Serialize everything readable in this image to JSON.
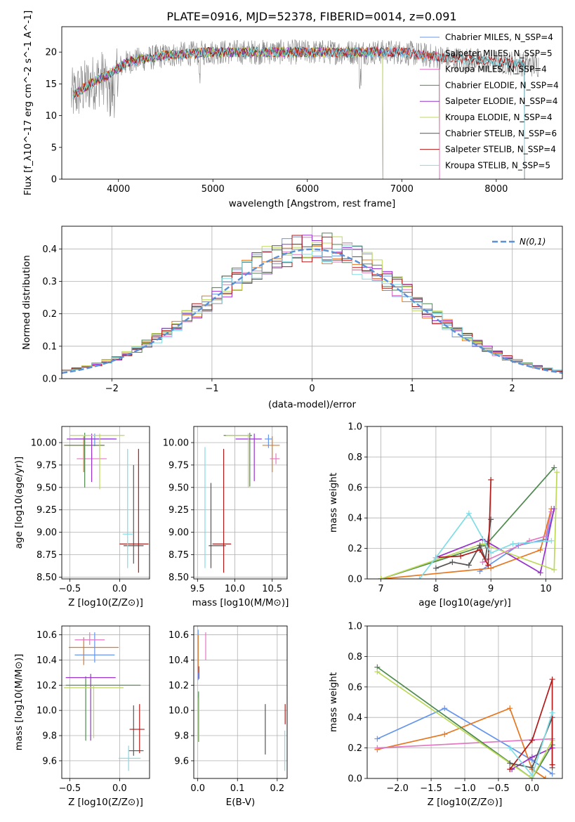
{
  "figure": {
    "title": "PLATE=0916, MJD=52378, FIBERID=0014, z=0.091",
    "colors": {
      "chabrier_miles": "#6495ed",
      "salpeter_miles": "#e6761f",
      "kroupa_miles": "#e377c2",
      "chabrier_elodie": "#4e8a4e",
      "salpeter_elodie": "#9932cc",
      "kroupa_elodie": "#bcd95a",
      "chabrier_stelib": "#555555",
      "salpeter_stelib": "#b21a1a",
      "kroupa_stelib": "#7fdde6"
    }
  },
  "chart_data": [
    {
      "id": "spectrum",
      "type": "line",
      "xlabel": "wavelength [Angstrom, rest frame]",
      "ylabel": "Flux [f_λ10^-17 erg cm^-2 s^-1 A^-1]",
      "xlim": [
        3400,
        8700
      ],
      "ylim": [
        0,
        24
      ],
      "xticks": [
        "4000",
        "5000",
        "6000",
        "7000",
        "8000"
      ],
      "yticks": [
        "0",
        "5",
        "10",
        "15",
        "20"
      ],
      "legend_position": "right",
      "legend": [
        "Chabrier MILES, N_SSP=4",
        "Salpeter MILES, N_SSP=5",
        "Kroupa MILES, N_SSP=4",
        "Chabrier ELODIE, N_SSP=4",
        "Salpeter ELODIE, N_SSP=4",
        "Kroupa ELODIE, N_SSP=4",
        "Chabrier STELIB, N_SSP=6",
        "Salpeter STELIB, N_SSP=4",
        "Kroupa STELIB, N_SSP=5"
      ],
      "continuum_points": [
        [
          3500,
          13
        ],
        [
          3700,
          15
        ],
        [
          3900,
          16.5
        ],
        [
          4100,
          18.5
        ],
        [
          4500,
          19.5
        ],
        [
          5000,
          20
        ],
        [
          5500,
          20
        ],
        [
          6000,
          20
        ],
        [
          6500,
          20
        ],
        [
          7000,
          20
        ],
        [
          7500,
          19
        ],
        [
          8000,
          18.5
        ],
        [
          8400,
          18
        ]
      ]
    },
    {
      "id": "residuals",
      "type": "step",
      "xlabel": "(data-model)/error",
      "ylabel": "Normed distribution",
      "xlim": [
        -2.5,
        2.5
      ],
      "ylim": [
        0,
        0.47
      ],
      "xticks": [
        "-2",
        "-1",
        "0",
        "1",
        "2"
      ],
      "yticks": [
        "0.0",
        "0.1",
        "0.2",
        "0.3",
        "0.4"
      ],
      "legend_position": "upper right",
      "legend": [
        "N(0,1)"
      ],
      "reference_curve": "normal(0,1)"
    },
    {
      "id": "age_vs_Z",
      "type": "errorbar",
      "xlabel": "Z [log10(Z/Z⊙)]",
      "ylabel": "age [log10(age/yr)]",
      "xlim": [
        -0.58,
        0.3
      ],
      "ylim": [
        8.48,
        10.18
      ],
      "xticks": [
        "-0.5",
        "0.0"
      ],
      "yticks": [
        "8.50",
        "8.75",
        "9.00",
        "9.25",
        "9.50",
        "9.75",
        "10.00"
      ],
      "points": [
        {
          "model": "chabrier_miles",
          "x": -0.25,
          "xerr": [
            0.2,
            0.2
          ],
          "y": 10.04,
          "yerr": [
            0.08,
            0.06
          ]
        },
        {
          "model": "salpeter_miles",
          "x": -0.36,
          "xerr": [
            0.2,
            0.2
          ],
          "y": 9.97,
          "yerr": [
            0.3,
            0.1
          ]
        },
        {
          "model": "kroupa_miles",
          "x": -0.28,
          "xerr": [
            0.15,
            0.15
          ],
          "y": 9.82,
          "yerr": [
            0.06,
            0.06
          ]
        },
        {
          "model": "chabrier_elodie",
          "x": -0.35,
          "xerr": [
            0.2,
            0.2
          ],
          "y": 9.97,
          "yerr": [
            0.47,
            0.14
          ]
        },
        {
          "model": "salpeter_elodie",
          "x": -0.28,
          "xerr": [
            0.25,
            0.25
          ],
          "y": 10.04,
          "yerr": [
            0.48,
            0.06
          ]
        },
        {
          "model": "kroupa_elodie",
          "x": -0.2,
          "xerr": [
            0.3,
            0.25
          ],
          "y": 10.08,
          "yerr": [
            0.6,
            0.02
          ]
        },
        {
          "model": "chabrier_stelib",
          "x": 0.14,
          "xerr": [
            0.1,
            0.1
          ],
          "y": 8.85,
          "yerr": [
            0.2,
            0.9
          ]
        },
        {
          "model": "salpeter_stelib",
          "x": 0.19,
          "xerr": [
            0.19,
            0.1
          ],
          "y": 8.87,
          "yerr": [
            0.32,
            1.06
          ]
        },
        {
          "model": "kroupa_stelib",
          "x": 0.08,
          "xerr": [
            0.05,
            0.05
          ],
          "y": 8.98,
          "yerr": [
            0.38,
            0.95
          ]
        }
      ]
    },
    {
      "id": "age_vs_mass",
      "type": "errorbar",
      "xlabel": "mass [log10(M/M⊙)]",
      "ylabel": "",
      "xlim": [
        9.45,
        10.7
      ],
      "ylim": [
        8.48,
        10.18
      ],
      "xticks": [
        "9.5",
        "10.0",
        "10.5"
      ],
      "yticks": [
        "8.50",
        "8.75",
        "9.00",
        "9.25",
        "9.50",
        "9.75",
        "10.00"
      ],
      "points": [
        {
          "model": "chabrier_miles",
          "x": 10.45,
          "xerr": [
            0.05,
            0.05
          ],
          "y": 10.04,
          "yerr": [
            0.1,
            0.05
          ]
        },
        {
          "model": "salpeter_miles",
          "x": 10.5,
          "xerr": [
            0.13,
            0.1
          ],
          "y": 9.97,
          "yerr": [
            0.3,
            0.1
          ]
        },
        {
          "model": "kroupa_miles",
          "x": 10.55,
          "xerr": [
            0.08,
            0.05
          ],
          "y": 9.82,
          "yerr": [
            0.06,
            0.06
          ]
        },
        {
          "model": "chabrier_elodie",
          "x": 10.2,
          "xerr": [
            0.35,
            0.03
          ],
          "y": 10.08,
          "yerr": [
            0.57,
            0.03
          ]
        },
        {
          "model": "salpeter_elodie",
          "x": 10.26,
          "xerr": [
            0.25,
            0.1
          ],
          "y": 10.04,
          "yerr": [
            0.47,
            0.06
          ]
        },
        {
          "model": "kroupa_elodie",
          "x": 10.18,
          "xerr": [
            0.3,
            0.02
          ],
          "y": 10.08,
          "yerr": [
            0.58,
            0.02
          ]
        },
        {
          "model": "chabrier_stelib",
          "x": 9.68,
          "xerr": [
            0.03,
            0.2
          ],
          "y": 8.85,
          "yerr": [
            0.25,
            0.7
          ]
        },
        {
          "model": "salpeter_stelib",
          "x": 9.85,
          "xerr": [
            0.15,
            0.1
          ],
          "y": 8.87,
          "yerr": [
            0.32,
            1.06
          ]
        },
        {
          "model": "kroupa_stelib",
          "x": 9.6,
          "xerr": [
            0.01,
            0.01
          ],
          "y": 9.0,
          "yerr": [
            0.4,
            0.95
          ]
        }
      ]
    },
    {
      "id": "massweight_vs_age",
      "type": "line",
      "xlabel": "age [log10(age/yr)]",
      "ylabel": "mass weight",
      "xlim": [
        6.75,
        10.3
      ],
      "ylim": [
        0,
        1.0
      ],
      "xticks": [
        "7",
        "8",
        "9",
        "10"
      ],
      "yticks": [
        "0.0",
        "0.2",
        "0.4",
        "0.6",
        "0.8",
        "1.0"
      ],
      "series": [
        {
          "model": "chabrier_miles",
          "points": [
            [
              8.8,
              0.05
            ],
            [
              9.5,
              0.22
            ],
            [
              10.0,
              0.26
            ],
            [
              10.15,
              0.46
            ]
          ]
        },
        {
          "model": "salpeter_miles",
          "points": [
            [
              7.0,
              0.0
            ],
            [
              9.0,
              0.07
            ],
            [
              9.9,
              0.19
            ],
            [
              10.1,
              0.46
            ]
          ]
        },
        {
          "model": "kroupa_miles",
          "points": [
            [
              8.85,
              0.11
            ],
            [
              9.7,
              0.25
            ],
            [
              10.0,
              0.28
            ],
            [
              10.1,
              0.44
            ]
          ]
        },
        {
          "model": "chabrier_elodie",
          "points": [
            [
              7.0,
              0.0
            ],
            [
              8.9,
              0.22
            ],
            [
              10.15,
              0.73
            ]
          ]
        },
        {
          "model": "salpeter_elodie",
          "points": [
            [
              8.0,
              0.14
            ],
            [
              8.85,
              0.26
            ],
            [
              9.9,
              0.04
            ],
            [
              10.15,
              0.46
            ]
          ]
        },
        {
          "model": "kroupa_elodie",
          "points": [
            [
              7.0,
              0.0
            ],
            [
              8.85,
              0.23
            ],
            [
              10.15,
              0.06
            ],
            [
              10.2,
              0.7
            ]
          ]
        },
        {
          "model": "chabrier_stelib",
          "points": [
            [
              8.0,
              0.07
            ],
            [
              8.3,
              0.11
            ],
            [
              8.6,
              0.09
            ],
            [
              8.8,
              0.22
            ],
            [
              8.9,
              0.13
            ],
            [
              9.0,
              0.39
            ]
          ]
        },
        {
          "model": "salpeter_stelib",
          "points": [
            [
              8.0,
              0.14
            ],
            [
              8.45,
              0.15
            ],
            [
              8.8,
              0.19
            ],
            [
              8.95,
              0.09
            ],
            [
              9.0,
              0.65
            ]
          ]
        },
        {
          "model": "kroupa_stelib",
          "points": [
            [
              7.7,
              0.0
            ],
            [
              8.0,
              0.14
            ],
            [
              8.6,
              0.43
            ],
            [
              9.0,
              0.17
            ],
            [
              9.4,
              0.23
            ],
            [
              10.1,
              0.25
            ]
          ]
        }
      ]
    },
    {
      "id": "mass_vs_Z",
      "type": "errorbar",
      "xlabel": "Z [log10(Z/Z⊙)]",
      "ylabel": "mass [log10(M/M⊙)]",
      "xlim": [
        -0.58,
        0.3
      ],
      "ylim": [
        9.46,
        10.67
      ],
      "xticks": [
        "-0.5",
        "0.0"
      ],
      "yticks": [
        "9.6",
        "9.8",
        "10.0",
        "10.2",
        "10.4",
        "10.6"
      ],
      "points": [
        {
          "model": "chabrier_miles",
          "x": -0.25,
          "xerr": [
            0.2,
            0.2
          ],
          "y": 10.44,
          "yerr": [
            0.06,
            0.18
          ]
        },
        {
          "model": "salpeter_miles",
          "x": -0.36,
          "xerr": [
            0.15,
            0.35
          ],
          "y": 10.5,
          "yerr": [
            0.14,
            0.08
          ]
        },
        {
          "model": "kroupa_miles",
          "x": -0.3,
          "xerr": [
            0.15,
            0.15
          ],
          "y": 10.56,
          "yerr": [
            0.04,
            0.06
          ]
        },
        {
          "model": "chabrier_elodie",
          "x": -0.34,
          "xerr": [
            0.2,
            0.55
          ],
          "y": 10.2,
          "yerr": [
            0.44,
            0.07
          ]
        },
        {
          "model": "salpeter_elodie",
          "x": -0.29,
          "xerr": [
            0.25,
            0.25
          ],
          "y": 10.26,
          "yerr": [
            0.5,
            0.03
          ]
        },
        {
          "model": "kroupa_elodie",
          "x": -0.26,
          "xerr": [
            0.3,
            0.3
          ],
          "y": 10.18,
          "yerr": [
            0.4,
            0.02
          ]
        },
        {
          "model": "chabrier_stelib",
          "x": 0.14,
          "xerr": [
            0.05,
            0.1
          ],
          "y": 9.68,
          "yerr": [
            0.04,
            0.36
          ]
        },
        {
          "model": "salpeter_stelib",
          "x": 0.2,
          "xerr": [
            0.1,
            0.05
          ],
          "y": 9.85,
          "yerr": [
            0.19,
            0.2
          ]
        },
        {
          "model": "kroupa_stelib",
          "x": 0.09,
          "xerr": [
            0.1,
            0.12
          ],
          "y": 9.62,
          "yerr": [
            0.1,
            0.1
          ]
        }
      ]
    },
    {
      "id": "mass_vs_ebv",
      "type": "errorbar",
      "xlabel": "E(B-V)",
      "ylabel": "",
      "xlim": [
        -0.01,
        0.225
      ],
      "ylim": [
        9.46,
        10.67
      ],
      "xticks": [
        "0.0",
        "0.1",
        "0.2"
      ],
      "yticks": [
        "9.6",
        "9.8",
        "10.0",
        "10.2",
        "10.4",
        "10.6"
      ],
      "points": [
        {
          "model": "chabrier_miles",
          "x": 0.001,
          "y": 10.44,
          "yerr": [
            0.2,
            0.2
          ]
        },
        {
          "model": "salpeter_miles",
          "x": 0.001,
          "y": 10.5,
          "yerr": [
            0.2,
            0.1
          ]
        },
        {
          "model": "kroupa_miles",
          "x": 0.02,
          "y": 10.5,
          "yerr": [
            0.1,
            0.12
          ]
        },
        {
          "model": "chabrier_elodie",
          "x": 0.002,
          "y": 10.0,
          "yerr": [
            0.25,
            0.15
          ]
        },
        {
          "model": "salpeter_elodie",
          "x": 0.003,
          "y": 10.3,
          "yerr": [
            0.05,
            0.05
          ]
        },
        {
          "model": "kroupa_elodie",
          "x": 0.003,
          "y": 9.95,
          "yerr": [
            0.2,
            0.15
          ]
        },
        {
          "model": "chabrier_stelib",
          "x": 0.17,
          "y": 9.85,
          "yerr": [
            0.2,
            0.2
          ]
        },
        {
          "model": "salpeter_stelib",
          "x": 0.22,
          "y": 9.97,
          "yerr": [
            0.08,
            0.08
          ]
        },
        {
          "model": "kroupa_stelib",
          "x": 0.219,
          "y": 9.68,
          "yerr": [
            0.16,
            0.16
          ]
        }
      ]
    },
    {
      "id": "massweight_vs_Z",
      "type": "line",
      "xlabel": "Z [log10(Z/Z⊙)]",
      "ylabel": "mass weight",
      "xlim": [
        -2.45,
        0.45
      ],
      "ylim": [
        0,
        1.0
      ],
      "xticks": [
        "-2.0",
        "-1.5",
        "-1.0",
        "-0.5",
        "0.0"
      ],
      "yticks": [
        "0.0",
        "0.2",
        "0.4",
        "0.6",
        "0.8",
        "1.0"
      ],
      "series": [
        {
          "model": "chabrier_miles",
          "points": [
            [
              -2.3,
              0.26
            ],
            [
              -1.3,
              0.46
            ],
            [
              0.0,
              0.12
            ],
            [
              0.3,
              0.03
            ]
          ]
        },
        {
          "model": "salpeter_miles",
          "points": [
            [
              -2.3,
              0.19
            ],
            [
              -1.3,
              0.29
            ],
            [
              -0.33,
              0.46
            ],
            [
              0.0,
              0.06
            ],
            [
              0.2,
              0.0
            ]
          ]
        },
        {
          "model": "kroupa_miles",
          "points": [
            [
              -2.3,
              0.2
            ],
            [
              0.3,
              0.26
            ]
          ]
        },
        {
          "model": "chabrier_elodie",
          "points": [
            [
              -2.3,
              0.73
            ],
            [
              0.0,
              0.0
            ],
            [
              0.3,
              0.22
            ]
          ]
        },
        {
          "model": "salpeter_elodie",
          "points": [
            [
              -0.3,
              0.06
            ],
            [
              0.0,
              0.14
            ],
            [
              0.3,
              0.2
            ]
          ]
        },
        {
          "model": "kroupa_elodie",
          "points": [
            [
              -2.3,
              0.7
            ],
            [
              0.0,
              0.0
            ],
            [
              0.3,
              0.25
            ]
          ]
        },
        {
          "model": "chabrier_stelib",
          "points": [
            [
              -0.33,
              0.1
            ],
            [
              0.0,
              0.07
            ],
            [
              0.3,
              0.4
            ],
            [
              0.3,
              0.07
            ]
          ]
        },
        {
          "model": "salpeter_stelib",
          "points": [
            [
              -0.33,
              0.06
            ],
            [
              0.0,
              0.25
            ],
            [
              0.3,
              0.65
            ],
            [
              0.3,
              0.09
            ]
          ]
        },
        {
          "model": "kroupa_stelib",
          "points": [
            [
              -0.33,
              0.2
            ],
            [
              0.0,
              0.02
            ],
            [
              0.3,
              0.43
            ]
          ]
        }
      ]
    }
  ]
}
